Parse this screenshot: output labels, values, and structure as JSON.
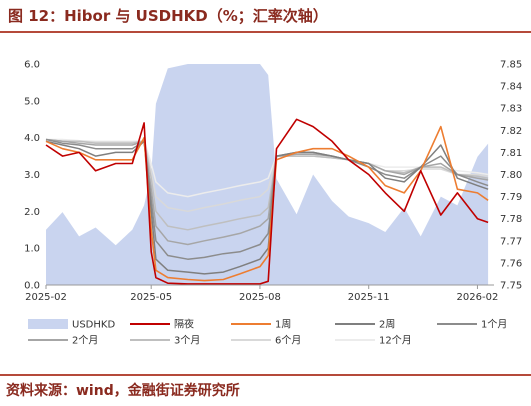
{
  "title": "图 12：Hibor 与 USDHKD（%；汇率次轴）",
  "source": "资料来源：wind，金融街证券研究所",
  "colors": {
    "title": "#8a2a1f",
    "rule": "#b54a3a",
    "usdhkd_area": "#c9d4ef",
    "overnight": "#c00000",
    "w1": "#ed7d31",
    "w2": "#7f7f7f",
    "m1": "#8c8c8c",
    "m2": "#a6a6a6",
    "m3": "#bfbfbf",
    "m6": "#d9d9d9",
    "m12": "#ececec"
  },
  "chart_data": {
    "type": "line",
    "title": "",
    "xlabel": "",
    "ylabel": "",
    "xlim": [
      "2025-02-01",
      "2026-02-15"
    ],
    "x_ticks": [
      "2025-02",
      "2025-05",
      "2025-08",
      "2025-11",
      "2026-02"
    ],
    "y_left_lim": [
      0,
      6
    ],
    "y_left_ticks": [
      "0.0",
      "1.0",
      "2.0",
      "3.0",
      "4.0",
      "5.0",
      "6.0"
    ],
    "y_right_lim": [
      7.75,
      7.85
    ],
    "y_right_ticks": [
      "7.75",
      "7.76",
      "7.77",
      "7.78",
      "7.79",
      "7.80",
      "7.81",
      "7.82",
      "7.83",
      "7.84",
      "7.85"
    ],
    "legend_position": "bottom",
    "x": [
      "2025-02-01",
      "2025-02-15",
      "2025-03-01",
      "2025-03-15",
      "2025-04-01",
      "2025-04-15",
      "2025-04-25",
      "2025-05-01",
      "2025-05-05",
      "2025-05-15",
      "2025-06-01",
      "2025-06-15",
      "2025-07-01",
      "2025-07-15",
      "2025-08-01",
      "2025-08-08",
      "2025-08-15",
      "2025-09-01",
      "2025-09-15",
      "2025-10-01",
      "2025-10-15",
      "2025-11-01",
      "2025-11-15",
      "2025-12-01",
      "2025-12-15",
      "2026-01-01",
      "2026-01-15",
      "2026-02-01",
      "2026-02-10"
    ],
    "series": [
      {
        "name": "USDHKD",
        "axis": "right",
        "kind": "area",
        "color_key": "usdhkd_area",
        "values": [
          7.775,
          7.783,
          7.772,
          7.776,
          7.768,
          7.775,
          7.786,
          7.8,
          7.832,
          7.848,
          7.85,
          7.85,
          7.85,
          7.85,
          7.85,
          7.845,
          7.798,
          7.782,
          7.8,
          7.788,
          7.781,
          7.778,
          7.774,
          7.785,
          7.772,
          7.79,
          7.786,
          7.808,
          7.814
        ]
      },
      {
        "name": "隔夜",
        "axis": "left",
        "kind": "line",
        "color_key": "overnight",
        "values": [
          3.8,
          3.5,
          3.6,
          3.1,
          3.3,
          3.3,
          4.4,
          0.9,
          0.2,
          0.05,
          0.03,
          0.03,
          0.03,
          0.03,
          0.03,
          0.1,
          3.7,
          4.5,
          4.3,
          3.9,
          3.4,
          3.0,
          2.5,
          2.0,
          3.1,
          1.9,
          2.5,
          1.8,
          1.7
        ]
      },
      {
        "name": "1周",
        "axis": "left",
        "kind": "line",
        "color_key": "w1",
        "values": [
          3.9,
          3.7,
          3.6,
          3.4,
          3.4,
          3.4,
          4.0,
          1.5,
          0.4,
          0.2,
          0.15,
          0.12,
          0.15,
          0.3,
          0.5,
          0.8,
          3.4,
          3.6,
          3.7,
          3.7,
          3.5,
          3.2,
          2.7,
          2.5,
          3.1,
          4.3,
          2.6,
          2.5,
          2.3
        ]
      },
      {
        "name": "2周",
        "axis": "left",
        "kind": "line",
        "color_key": "w2",
        "values": [
          3.9,
          3.8,
          3.7,
          3.5,
          3.6,
          3.6,
          3.9,
          2.0,
          0.7,
          0.4,
          0.35,
          0.3,
          0.35,
          0.5,
          0.7,
          1.0,
          3.5,
          3.6,
          3.6,
          3.5,
          3.4,
          3.3,
          2.9,
          2.8,
          3.2,
          3.8,
          2.9,
          2.7,
          2.6
        ]
      },
      {
        "name": "1个月",
        "axis": "left",
        "kind": "line",
        "color_key": "m1",
        "values": [
          3.95,
          3.85,
          3.8,
          3.7,
          3.7,
          3.7,
          3.9,
          2.3,
          1.2,
          0.8,
          0.7,
          0.75,
          0.85,
          0.9,
          1.1,
          1.4,
          3.5,
          3.6,
          3.6,
          3.5,
          3.4,
          3.2,
          3.0,
          2.9,
          3.2,
          3.5,
          3.0,
          2.8,
          2.7
        ]
      },
      {
        "name": "2个月",
        "axis": "left",
        "kind": "line",
        "color_key": "m2",
        "values": [
          3.95,
          3.9,
          3.85,
          3.8,
          3.8,
          3.8,
          3.9,
          2.6,
          1.6,
          1.2,
          1.1,
          1.2,
          1.3,
          1.4,
          1.6,
          1.8,
          3.5,
          3.55,
          3.55,
          3.5,
          3.4,
          3.3,
          3.1,
          3.0,
          3.2,
          3.3,
          3.0,
          2.9,
          2.85
        ]
      },
      {
        "name": "3个月",
        "axis": "left",
        "kind": "line",
        "color_key": "m3",
        "values": [
          3.95,
          3.9,
          3.9,
          3.85,
          3.85,
          3.85,
          3.9,
          2.9,
          2.0,
          1.6,
          1.5,
          1.6,
          1.7,
          1.8,
          1.9,
          2.1,
          3.5,
          3.5,
          3.5,
          3.45,
          3.4,
          3.3,
          3.1,
          3.05,
          3.2,
          3.2,
          3.0,
          2.95,
          2.9
        ]
      },
      {
        "name": "6个月",
        "axis": "left",
        "kind": "line",
        "color_key": "m6",
        "values": [
          3.95,
          3.9,
          3.9,
          3.88,
          3.88,
          3.88,
          3.9,
          3.1,
          2.4,
          2.1,
          2.0,
          2.1,
          2.2,
          2.3,
          2.4,
          2.6,
          3.5,
          3.5,
          3.5,
          3.45,
          3.4,
          3.3,
          3.1,
          3.1,
          3.15,
          3.15,
          3.0,
          3.0,
          2.95
        ]
      },
      {
        "name": "12个月",
        "axis": "left",
        "kind": "line",
        "color_key": "m12",
        "values": [
          3.95,
          3.95,
          3.92,
          3.9,
          3.9,
          3.9,
          3.92,
          3.3,
          2.8,
          2.5,
          2.4,
          2.5,
          2.6,
          2.7,
          2.8,
          2.9,
          3.5,
          3.5,
          3.5,
          3.45,
          3.4,
          3.3,
          3.2,
          3.2,
          3.2,
          3.2,
          3.1,
          3.05,
          3.0
        ]
      }
    ]
  }
}
